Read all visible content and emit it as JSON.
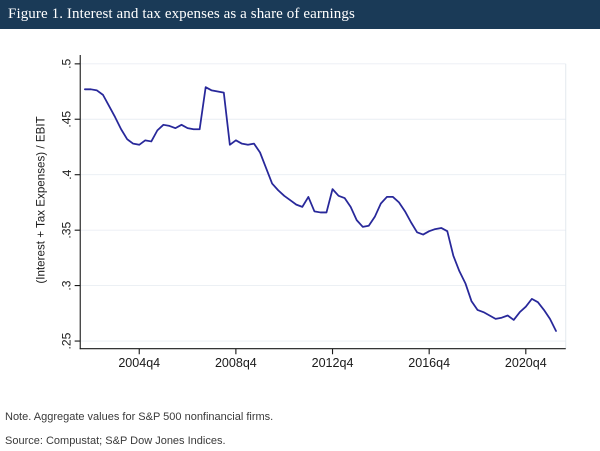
{
  "header": {
    "title": "Figure 1. Interest and tax expenses as a share of earnings"
  },
  "notes": {
    "note": "Note. Aggregate values for S&P 500 nonfinancial firms.",
    "source": "Source: Compustat; S&P Dow Jones Indices."
  },
  "colors": {
    "header_bg": "#1a3a57",
    "line": "#28289a",
    "grid": "#e9eef3",
    "plot_border": "#e0e7ed",
    "axis": "#1a1a1a",
    "text": "#1a1a1a"
  },
  "chart_data": {
    "type": "line",
    "title": "Figure 1. Interest and tax expenses as a share of earnings",
    "xlabel": "",
    "ylabel": "(Interest + Tax Expenses) / EBIT",
    "ylim": [
      0.25,
      0.5
    ],
    "grid": true,
    "legend": "none",
    "yticks": [
      0.5,
      0.45,
      0.4,
      0.35,
      0.3,
      0.25
    ],
    "ytick_labels": [
      ".5",
      ".45",
      ".4",
      ".35",
      ".3",
      ".25"
    ],
    "xtick_labels": [
      "2004q4",
      "2008q4",
      "2012q4",
      "2016q4",
      "2020q4"
    ],
    "x": [
      "2002q3",
      "2002q4",
      "2003q1",
      "2003q2",
      "2003q3",
      "2003q4",
      "2004q1",
      "2004q2",
      "2004q3",
      "2004q4",
      "2005q1",
      "2005q2",
      "2005q3",
      "2005q4",
      "2006q1",
      "2006q2",
      "2006q3",
      "2006q4",
      "2007q1",
      "2007q2",
      "2007q3",
      "2007q4",
      "2008q1",
      "2008q2",
      "2008q3",
      "2008q4",
      "2009q1",
      "2009q2",
      "2009q3",
      "2009q4",
      "2010q1",
      "2010q2",
      "2010q3",
      "2010q4",
      "2011q1",
      "2011q2",
      "2011q3",
      "2011q4",
      "2012q1",
      "2012q2",
      "2012q3",
      "2012q4",
      "2013q1",
      "2013q2",
      "2013q3",
      "2013q4",
      "2014q1",
      "2014q2",
      "2014q3",
      "2014q4",
      "2015q1",
      "2015q2",
      "2015q3",
      "2015q4",
      "2016q1",
      "2016q2",
      "2016q3",
      "2016q4",
      "2017q1",
      "2017q2",
      "2017q3",
      "2017q4",
      "2018q1",
      "2018q2",
      "2018q3",
      "2018q4",
      "2019q1",
      "2019q2",
      "2019q3",
      "2019q4",
      "2020q1",
      "2020q2",
      "2020q3",
      "2020q4",
      "2021q1",
      "2021q2",
      "2021q3",
      "2021q4",
      "2022q1"
    ],
    "y": [
      0.477,
      0.477,
      0.476,
      0.472,
      0.462,
      0.452,
      0.441,
      0.432,
      0.428,
      0.427,
      0.431,
      0.43,
      0.44,
      0.445,
      0.444,
      0.442,
      0.445,
      0.442,
      0.441,
      0.441,
      0.479,
      0.476,
      0.475,
      0.474,
      0.427,
      0.431,
      0.428,
      0.427,
      0.428,
      0.42,
      0.406,
      0.392,
      0.386,
      0.381,
      0.377,
      0.373,
      0.371,
      0.38,
      0.367,
      0.366,
      0.366,
      0.387,
      0.381,
      0.379,
      0.371,
      0.359,
      0.353,
      0.354,
      0.362,
      0.374,
      0.38,
      0.38,
      0.375,
      0.367,
      0.357,
      0.348,
      0.346,
      0.349,
      0.351,
      0.352,
      0.349,
      0.327,
      0.313,
      0.302,
      0.286,
      0.278,
      0.276,
      0.273,
      0.27,
      0.271,
      0.273,
      0.269,
      0.276,
      0.281,
      0.288,
      0.285,
      0.278,
      0.27,
      0.259
    ]
  }
}
